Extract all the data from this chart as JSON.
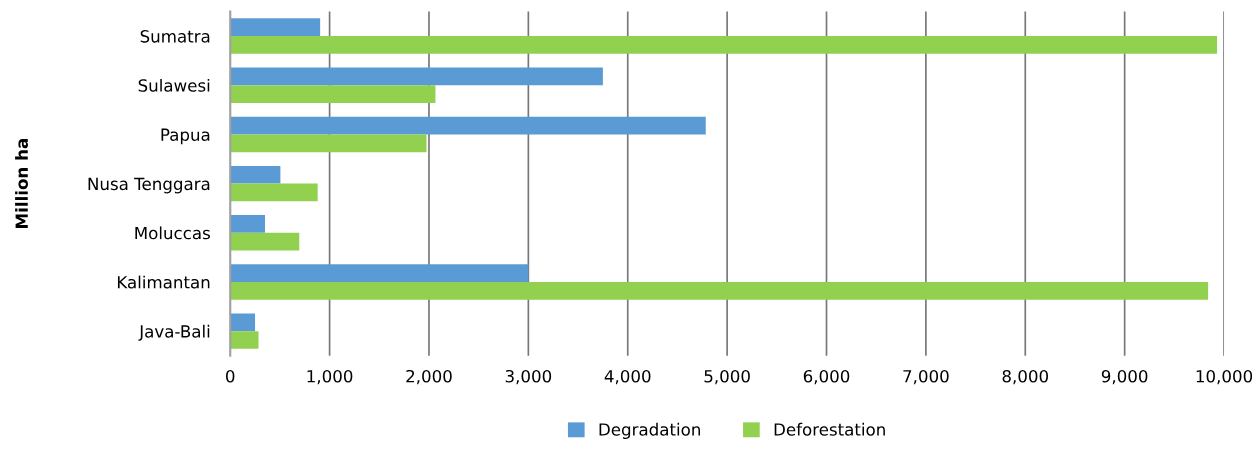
{
  "chart_data": {
    "type": "bar",
    "orientation": "horizontal",
    "ylabel": "Million ha",
    "categories": [
      "Sumatra",
      "Sulawesi",
      "Papua",
      "Nusa Tenggara",
      "Moluccas",
      "Kalimantan",
      "Java-Bali"
    ],
    "series": [
      {
        "name": "Degradation",
        "color": "#5b9bd5",
        "values": [
          905,
          3750,
          4785,
          505,
          350,
          3000,
          250
        ]
      },
      {
        "name": "Deforestation",
        "color": "#92d050",
        "values": [
          9930,
          2065,
          1975,
          880,
          695,
          9840,
          285
        ]
      }
    ],
    "xlim": [
      0,
      10000
    ],
    "xticks": [
      0,
      {
        "value": 1000,
        "label": "1,000"
      },
      {
        "value": 2000,
        "label": "2,000"
      },
      {
        "value": 3000,
        "label": "3,000"
      },
      {
        "value": 4000,
        "label": "4,000"
      },
      {
        "value": 5000,
        "label": "5,000"
      },
      {
        "value": 6000,
        "label": "6,000"
      },
      {
        "value": 7000,
        "label": "7,000"
      },
      {
        "value": 8000,
        "label": "8,000"
      },
      {
        "value": 9000,
        "label": "9,000"
      },
      {
        "value": 10000,
        "label": "10,000"
      }
    ],
    "grid": "x",
    "legend": "bottom"
  }
}
